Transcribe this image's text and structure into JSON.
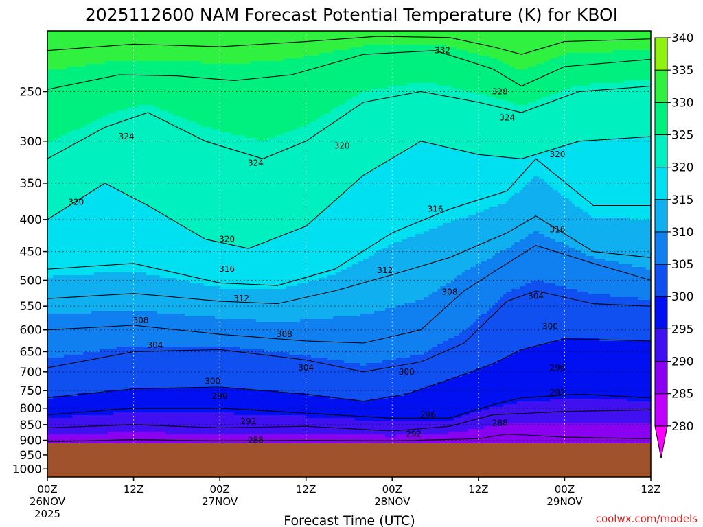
{
  "chart_data": {
    "type": "heatmap",
    "title": "2025112600 NAM Forecast Potential Temperature (K) for KBOI",
    "xlabel": "Forecast Time (UTC)",
    "ylabel": "",
    "ylim": [
      1030,
      200
    ],
    "xlim": [
      0,
      84
    ],
    "grid": true,
    "y_ticks": [
      250,
      300,
      350,
      400,
      450,
      500,
      550,
      600,
      650,
      700,
      750,
      800,
      850,
      900,
      950,
      1000
    ],
    "x_ticks": [
      {
        "hour": 0,
        "label": "00Z",
        "date": "26NOV",
        "year": "2025"
      },
      {
        "hour": 12,
        "label": "12Z",
        "date": "",
        "year": ""
      },
      {
        "hour": 24,
        "label": "00Z",
        "date": "27NOV",
        "year": ""
      },
      {
        "hour": 36,
        "label": "12Z",
        "date": "",
        "year": ""
      },
      {
        "hour": 48,
        "label": "00Z",
        "date": "28NOV",
        "year": ""
      },
      {
        "hour": 60,
        "label": "12Z",
        "date": "",
        "year": ""
      },
      {
        "hour": 72,
        "label": "00Z",
        "date": "29NOV",
        "year": ""
      },
      {
        "hour": 84,
        "label": "12Z",
        "date": "",
        "year": ""
      }
    ],
    "colorbar": {
      "levels": [
        280,
        285,
        290,
        295,
        300,
        305,
        310,
        315,
        320,
        325,
        330,
        335,
        340
      ],
      "colors": [
        "#ff00ff",
        "#c000ff",
        "#8a00f0",
        "#4010f0",
        "#0010f0",
        "#1050f0",
        "#1080f0",
        "#10b0f0",
        "#00e0f0",
        "#00f0c0",
        "#00f080",
        "#30f040",
        "#90f010",
        "#c8f000"
      ]
    },
    "terrain": {
      "surface_pressure_hPa": 910,
      "color": "#a0522d"
    },
    "isentropes": [
      {
        "theta": 288,
        "points": [
          [
            0,
            905
          ],
          [
            12,
            898
          ],
          [
            24,
            902
          ],
          [
            36,
            900
          ],
          [
            48,
            902
          ],
          [
            60,
            895
          ],
          [
            64,
            880
          ],
          [
            72,
            890
          ],
          [
            84,
            895
          ]
        ]
      },
      {
        "theta": 292,
        "points": [
          [
            0,
            860
          ],
          [
            12,
            850
          ],
          [
            24,
            860
          ],
          [
            36,
            855
          ],
          [
            48,
            870
          ],
          [
            56,
            855
          ],
          [
            62,
            820
          ],
          [
            72,
            810
          ],
          [
            84,
            805
          ]
        ]
      },
      {
        "theta": 296,
        "points": [
          [
            0,
            820
          ],
          [
            12,
            800
          ],
          [
            24,
            800
          ],
          [
            36,
            815
          ],
          [
            48,
            830
          ],
          [
            56,
            830
          ],
          [
            62,
            790
          ],
          [
            66,
            770
          ],
          [
            74,
            760
          ],
          [
            84,
            770
          ]
        ]
      },
      {
        "theta": 300,
        "points": [
          [
            0,
            770
          ],
          [
            12,
            745
          ],
          [
            24,
            740
          ],
          [
            36,
            760
          ],
          [
            44,
            780
          ],
          [
            50,
            760
          ],
          [
            56,
            720
          ],
          [
            62,
            680
          ],
          [
            66,
            645
          ],
          [
            72,
            620
          ],
          [
            84,
            625
          ]
        ]
      },
      {
        "theta": 304,
        "points": [
          [
            0,
            690
          ],
          [
            12,
            650
          ],
          [
            24,
            645
          ],
          [
            36,
            670
          ],
          [
            44,
            700
          ],
          [
            52,
            675
          ],
          [
            58,
            630
          ],
          [
            64,
            540
          ],
          [
            68,
            520
          ],
          [
            76,
            545
          ],
          [
            84,
            550
          ]
        ]
      },
      {
        "theta": 308,
        "points": [
          [
            0,
            600
          ],
          [
            12,
            590
          ],
          [
            24,
            610
          ],
          [
            36,
            625
          ],
          [
            44,
            630
          ],
          [
            52,
            600
          ],
          [
            58,
            520
          ],
          [
            64,
            470
          ],
          [
            68,
            440
          ],
          [
            76,
            470
          ],
          [
            84,
            500
          ]
        ]
      },
      {
        "theta": 312,
        "points": [
          [
            0,
            535
          ],
          [
            12,
            525
          ],
          [
            24,
            540
          ],
          [
            32,
            545
          ],
          [
            40,
            520
          ],
          [
            48,
            490
          ],
          [
            56,
            460
          ],
          [
            64,
            420
          ],
          [
            68,
            395
          ],
          [
            76,
            450
          ],
          [
            84,
            460
          ]
        ]
      },
      {
        "theta": 316,
        "points": [
          [
            0,
            480
          ],
          [
            12,
            470
          ],
          [
            24,
            505
          ],
          [
            32,
            510
          ],
          [
            40,
            480
          ],
          [
            48,
            420
          ],
          [
            56,
            385
          ],
          [
            64,
            360
          ],
          [
            68,
            320
          ],
          [
            76,
            380
          ],
          [
            84,
            380
          ]
        ]
      },
      {
        "theta": 320,
        "points": [
          [
            0,
            400
          ],
          [
            8,
            350
          ],
          [
            14,
            380
          ],
          [
            22,
            430
          ],
          [
            28,
            445
          ],
          [
            36,
            410
          ],
          [
            44,
            340
          ],
          [
            52,
            300
          ],
          [
            60,
            315
          ],
          [
            66,
            320
          ],
          [
            74,
            300
          ],
          [
            84,
            295
          ]
        ]
      },
      {
        "theta": 324,
        "points": [
          [
            0,
            320
          ],
          [
            8,
            285
          ],
          [
            14,
            270
          ],
          [
            22,
            300
          ],
          [
            30,
            320
          ],
          [
            36,
            300
          ],
          [
            44,
            260
          ],
          [
            52,
            250
          ],
          [
            60,
            260
          ],
          [
            66,
            270
          ],
          [
            74,
            250
          ],
          [
            84,
            245
          ]
        ]
      },
      {
        "theta": 328,
        "points": [
          [
            0,
            248
          ],
          [
            10,
            235
          ],
          [
            18,
            236
          ],
          [
            26,
            240
          ],
          [
            34,
            235
          ],
          [
            44,
            218
          ],
          [
            54,
            215
          ],
          [
            62,
            230
          ],
          [
            66,
            245
          ],
          [
            72,
            228
          ],
          [
            84,
            222
          ]
        ]
      },
      {
        "theta": 332,
        "points": [
          [
            0,
            215
          ],
          [
            12,
            210
          ],
          [
            24,
            212
          ],
          [
            36,
            208
          ],
          [
            46,
            204
          ],
          [
            56,
            205
          ],
          [
            62,
            212
          ],
          [
            66,
            218
          ],
          [
            72,
            208
          ],
          [
            84,
            206
          ]
        ]
      }
    ],
    "contour_labels": [
      {
        "text": "332",
        "hour": 55,
        "p": 215
      },
      {
        "text": "328",
        "hour": 63,
        "p": 250
      },
      {
        "text": "324",
        "hour": 64,
        "p": 275
      },
      {
        "text": "320",
        "hour": 71,
        "p": 315
      },
      {
        "text": "324",
        "hour": 11,
        "p": 295
      },
      {
        "text": "320",
        "hour": 41,
        "p": 305
      },
      {
        "text": "324",
        "hour": 29,
        "p": 325
      },
      {
        "text": "320",
        "hour": 4,
        "p": 375
      },
      {
        "text": "316",
        "hour": 54,
        "p": 385
      },
      {
        "text": "316",
        "hour": 71,
        "p": 415
      },
      {
        "text": "320",
        "hour": 25,
        "p": 430
      },
      {
        "text": "316",
        "hour": 25,
        "p": 480
      },
      {
        "text": "312",
        "hour": 47,
        "p": 482
      },
      {
        "text": "312",
        "hour": 27,
        "p": 535
      },
      {
        "text": "308",
        "hour": 56,
        "p": 522
      },
      {
        "text": "304",
        "hour": 68,
        "p": 530
      },
      {
        "text": "308",
        "hour": 13,
        "p": 580
      },
      {
        "text": "300",
        "hour": 70,
        "p": 592
      },
      {
        "text": "308",
        "hour": 33,
        "p": 610
      },
      {
        "text": "304",
        "hour": 15,
        "p": 635
      },
      {
        "text": "296",
        "hour": 71,
        "p": 690
      },
      {
        "text": "304",
        "hour": 36,
        "p": 690
      },
      {
        "text": "300",
        "hour": 50,
        "p": 700
      },
      {
        "text": "300",
        "hour": 23,
        "p": 725
      },
      {
        "text": "296",
        "hour": 24,
        "p": 765
      },
      {
        "text": "292",
        "hour": 71,
        "p": 755
      },
      {
        "text": "296",
        "hour": 53,
        "p": 820
      },
      {
        "text": "292",
        "hour": 28,
        "p": 840
      },
      {
        "text": "288",
        "hour": 63,
        "p": 845
      },
      {
        "text": "292",
        "hour": 51,
        "p": 880
      },
      {
        "text": "288",
        "hour": 29,
        "p": 900
      }
    ]
  },
  "credit": "coolwx.com/models"
}
